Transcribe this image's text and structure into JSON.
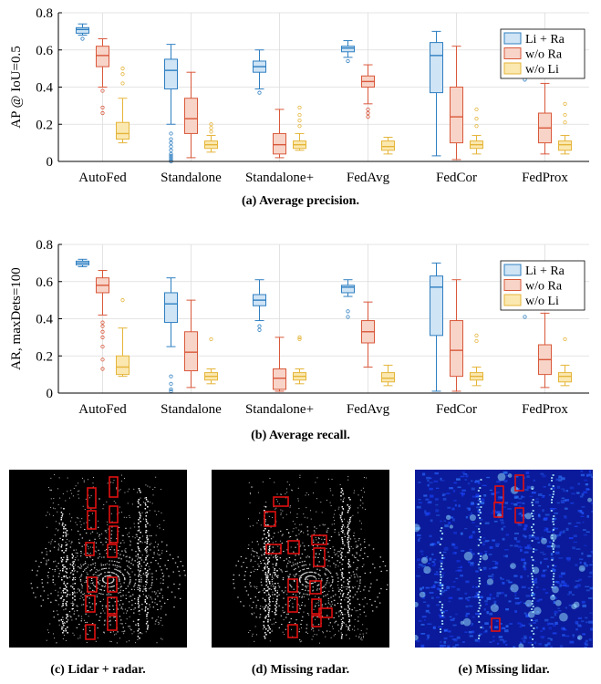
{
  "captions": {
    "a": "(a) Average precision.",
    "b": "(b) Average recall.",
    "c": "(c) Lidar + radar.",
    "d": "(d) Missing radar.",
    "e": "(e) Missing lidar."
  },
  "colors": {
    "li_ra": {
      "fill": "#cfe4f5",
      "stroke": "#2f7fc1"
    },
    "wo_ra": {
      "fill": "#f8d4c8",
      "stroke": "#d9583b"
    },
    "wo_li": {
      "fill": "#fbe8b0",
      "stroke": "#e5b53a"
    },
    "grid": "#dcdcdc",
    "lidar_bg": "#000000",
    "radar_bg": "#0a1a9a",
    "box": "#e01010"
  },
  "chart_data": [
    {
      "type": "box",
      "ylabel": "AP @ IoU=0.5",
      "ylim": [
        0,
        0.8
      ],
      "yticks": [
        "0",
        "0.2",
        "0.4",
        "0.6",
        "0.8"
      ],
      "categories": [
        "AutoFed",
        "Standalone",
        "Standalone+",
        "FedAvg",
        "FedCor",
        "FedProx"
      ],
      "legend": [
        "Li + Ra",
        "w/o Ra",
        "w/o Li"
      ],
      "grid": true,
      "legend_position": "top-right",
      "series": [
        {
          "name": "Li + Ra",
          "boxes": [
            {
              "min": 0.68,
              "q1": 0.69,
              "median": 0.71,
              "q3": 0.72,
              "max": 0.74,
              "outliers": [
                0.66
              ]
            },
            {
              "min": 0.2,
              "q1": 0.39,
              "median": 0.49,
              "q3": 0.55,
              "max": 0.63,
              "outliers": [
                0.15,
                0.12,
                0.1,
                0.08,
                0.06,
                0.04,
                0.03,
                0.02,
                0.01,
                0.0
              ]
            },
            {
              "min": 0.39,
              "q1": 0.48,
              "median": 0.51,
              "q3": 0.54,
              "max": 0.6,
              "outliers": [
                0.37
              ]
            },
            {
              "min": 0.56,
              "q1": 0.59,
              "median": 0.61,
              "q3": 0.62,
              "max": 0.65,
              "outliers": [
                0.54
              ]
            },
            {
              "min": 0.03,
              "q1": 0.37,
              "median": 0.57,
              "q3": 0.64,
              "max": 0.7,
              "outliers": []
            },
            {
              "min": 0.53,
              "q1": 0.6,
              "median": 0.64,
              "q3": 0.66,
              "max": 0.71,
              "outliers": [
                0.48,
                0.44
              ]
            }
          ]
        },
        {
          "name": "w/o Ra",
          "boxes": [
            {
              "min": 0.4,
              "q1": 0.51,
              "median": 0.57,
              "q3": 0.62,
              "max": 0.66,
              "outliers": [
                0.38,
                0.29,
                0.26
              ]
            },
            {
              "min": 0.02,
              "q1": 0.15,
              "median": 0.23,
              "q3": 0.34,
              "max": 0.48,
              "outliers": []
            },
            {
              "min": 0.02,
              "q1": 0.04,
              "median": 0.09,
              "q3": 0.15,
              "max": 0.28,
              "outliers": []
            },
            {
              "min": 0.31,
              "q1": 0.4,
              "median": 0.43,
              "q3": 0.46,
              "max": 0.52,
              "outliers": [
                0.28,
                0.26,
                0.24
              ]
            },
            {
              "min": 0.01,
              "q1": 0.1,
              "median": 0.24,
              "q3": 0.4,
              "max": 0.62,
              "outliers": []
            },
            {
              "min": 0.04,
              "q1": 0.1,
              "median": 0.18,
              "q3": 0.26,
              "max": 0.42,
              "outliers": []
            }
          ]
        },
        {
          "name": "w/o Li",
          "boxes": [
            {
              "min": 0.1,
              "q1": 0.12,
              "median": 0.15,
              "q3": 0.21,
              "max": 0.34,
              "outliers": [
                0.5,
                0.47,
                0.42
              ]
            },
            {
              "min": 0.05,
              "q1": 0.07,
              "median": 0.09,
              "q3": 0.11,
              "max": 0.14,
              "outliers": [
                0.2,
                0.18,
                0.16
              ]
            },
            {
              "min": 0.06,
              "q1": 0.07,
              "median": 0.09,
              "q3": 0.11,
              "max": 0.15,
              "outliers": [
                0.29,
                0.25,
                0.22,
                0.19
              ]
            },
            {
              "min": 0.04,
              "q1": 0.06,
              "median": 0.08,
              "q3": 0.11,
              "max": 0.13,
              "outliers": []
            },
            {
              "min": 0.04,
              "q1": 0.07,
              "median": 0.09,
              "q3": 0.11,
              "max": 0.14,
              "outliers": [
                0.28,
                0.23,
                0.19
              ]
            },
            {
              "min": 0.04,
              "q1": 0.06,
              "median": 0.09,
              "q3": 0.11,
              "max": 0.14,
              "outliers": [
                0.31,
                0.25,
                0.21
              ]
            }
          ]
        }
      ]
    },
    {
      "type": "box",
      "ylabel": "AR, maxDets=100",
      "ylim": [
        0,
        0.8
      ],
      "yticks": [
        "0",
        "0.2",
        "0.4",
        "0.6",
        "0.8"
      ],
      "categories": [
        "AutoFed",
        "Standalone",
        "Standalone+",
        "FedAvg",
        "FedCor",
        "FedProx"
      ],
      "legend": [
        "Li + Ra",
        "w/o Ra",
        "w/o Li"
      ],
      "grid": true,
      "legend_position": "top-right",
      "series": [
        {
          "name": "Li + Ra",
          "boxes": [
            {
              "min": 0.68,
              "q1": 0.69,
              "median": 0.7,
              "q3": 0.71,
              "max": 0.72,
              "outliers": []
            },
            {
              "min": 0.25,
              "q1": 0.38,
              "median": 0.48,
              "q3": 0.54,
              "max": 0.62,
              "outliers": [
                0.09,
                0.05,
                0.02,
                0.01
              ]
            },
            {
              "min": 0.39,
              "q1": 0.47,
              "median": 0.5,
              "q3": 0.53,
              "max": 0.61,
              "outliers": [
                0.36,
                0.34
              ]
            },
            {
              "min": 0.52,
              "q1": 0.54,
              "median": 0.57,
              "q3": 0.58,
              "max": 0.61,
              "outliers": [
                0.44,
                0.41
              ]
            },
            {
              "min": 0.01,
              "q1": 0.31,
              "median": 0.57,
              "q3": 0.63,
              "max": 0.7,
              "outliers": []
            },
            {
              "min": 0.45,
              "q1": 0.54,
              "median": 0.59,
              "q3": 0.63,
              "max": 0.69,
              "outliers": [
                0.41
              ]
            }
          ]
        },
        {
          "name": "w/o Ra",
          "boxes": [
            {
              "min": 0.42,
              "q1": 0.54,
              "median": 0.58,
              "q3": 0.62,
              "max": 0.66,
              "outliers": [
                0.38,
                0.36,
                0.33,
                0.3,
                0.25,
                0.18,
                0.13
              ]
            },
            {
              "min": 0.03,
              "q1": 0.12,
              "median": 0.22,
              "q3": 0.33,
              "max": 0.5,
              "outliers": []
            },
            {
              "min": 0.01,
              "q1": 0.02,
              "median": 0.08,
              "q3": 0.13,
              "max": 0.3,
              "outliers": []
            },
            {
              "min": 0.14,
              "q1": 0.27,
              "median": 0.33,
              "q3": 0.39,
              "max": 0.49,
              "outliers": []
            },
            {
              "min": 0.01,
              "q1": 0.09,
              "median": 0.23,
              "q3": 0.39,
              "max": 0.61,
              "outliers": []
            },
            {
              "min": 0.03,
              "q1": 0.1,
              "median": 0.18,
              "q3": 0.26,
              "max": 0.43,
              "outliers": []
            }
          ]
        },
        {
          "name": "w/o Li",
          "boxes": [
            {
              "min": 0.09,
              "q1": 0.1,
              "median": 0.14,
              "q3": 0.2,
              "max": 0.35,
              "outliers": [
                0.5
              ]
            },
            {
              "min": 0.05,
              "q1": 0.07,
              "median": 0.09,
              "q3": 0.11,
              "max": 0.13,
              "outliers": [
                0.29
              ]
            },
            {
              "min": 0.05,
              "q1": 0.07,
              "median": 0.09,
              "q3": 0.11,
              "max": 0.13,
              "outliers": [
                0.3,
                0.29
              ]
            },
            {
              "min": 0.04,
              "q1": 0.06,
              "median": 0.08,
              "q3": 0.11,
              "max": 0.15,
              "outliers": []
            },
            {
              "min": 0.04,
              "q1": 0.07,
              "median": 0.09,
              "q3": 0.11,
              "max": 0.14,
              "outliers": [
                0.31,
                0.28
              ]
            },
            {
              "min": 0.04,
              "q1": 0.06,
              "median": 0.09,
              "q3": 0.11,
              "max": 0.15,
              "outliers": [
                0.29
              ]
            }
          ]
        }
      ]
    }
  ]
}
